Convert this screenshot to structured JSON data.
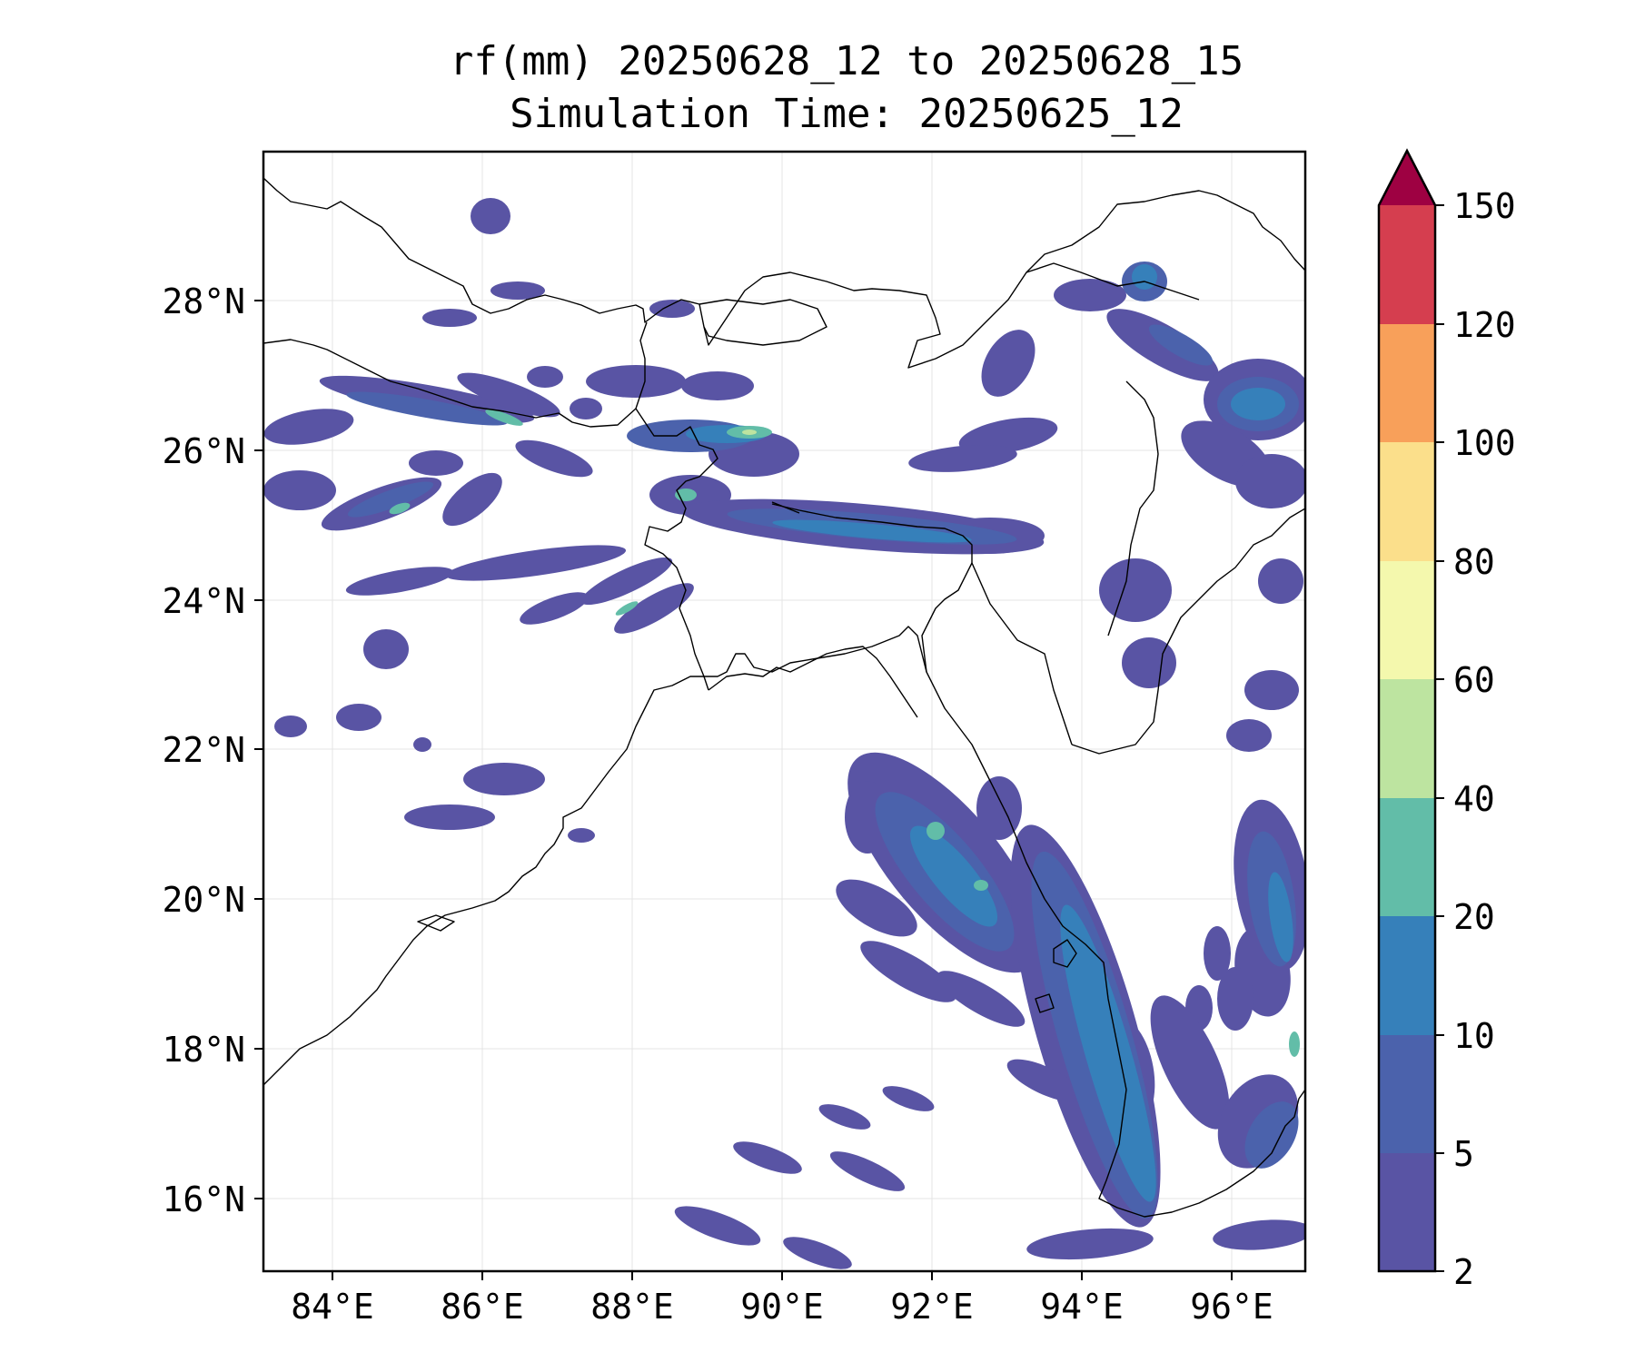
{
  "title_line1": "rf(mm) 20250628_12 to 20250628_15",
  "title_line2": "Simulation Time: 20250625_12",
  "lat_labels": [
    "28°N",
    "26°N",
    "24°N",
    "22°N",
    "20°N",
    "18°N",
    "16°N"
  ],
  "lon_labels": [
    "84°E",
    "86°E",
    "88°E",
    "90°E",
    "92°E",
    "94°E",
    "96°E"
  ],
  "colorbar": {
    "levels": [
      "2",
      "5",
      "10",
      "20",
      "40",
      "60",
      "80",
      "100",
      "120",
      "150"
    ],
    "colors": [
      "#5954a4",
      "#4b62ac",
      "#3680ba",
      "#62bda8",
      "#bde4a0",
      "#f4f8ad",
      "#fbdf8b",
      "#f8a05a",
      "#d53e4f",
      "#9e0142"
    ],
    "extend": "max"
  },
  "palette": {
    "outline": "#000000",
    "grid": "#d9d9d9"
  }
}
